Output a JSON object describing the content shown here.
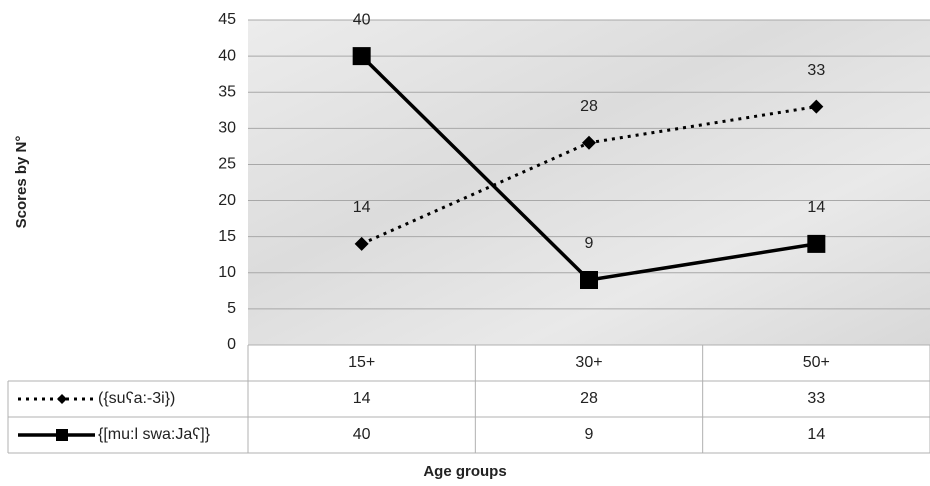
{
  "chart_data": {
    "type": "line",
    "y_label": "Scores by N°",
    "x_label": "Age groups",
    "categories": [
      "15+",
      "30+",
      "50+"
    ],
    "series": [
      {
        "name": "({suʕa:-3i})",
        "color": "#000000",
        "values": [
          14,
          28,
          33
        ],
        "dash": "dotted",
        "marker": "diamond"
      },
      {
        "name": "{[mu:l swa:Jaʕ]}",
        "color": "#000000",
        "values": [
          40,
          9,
          14
        ],
        "dash": "solid",
        "marker": "square"
      }
    ],
    "ylim": [
      0,
      45
    ],
    "yticks": [
      0,
      5,
      10,
      15,
      20,
      25,
      30,
      35,
      40,
      45
    ],
    "grid": true,
    "data_table": true
  }
}
